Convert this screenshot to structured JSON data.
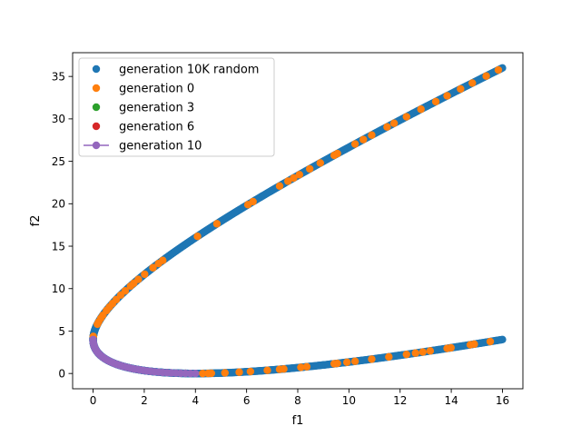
{
  "chart_data": {
    "type": "scatter",
    "title": "",
    "xlabel": "f1",
    "ylabel": "f2",
    "xlim": [
      -0.8,
      16.8
    ],
    "ylim": [
      -1.8,
      37.8
    ],
    "xticks": [
      0,
      2,
      4,
      6,
      8,
      10,
      12,
      14,
      16
    ],
    "yticks": [
      0,
      5,
      10,
      15,
      20,
      25,
      30,
      35
    ],
    "xtick_labels": [
      "0",
      "2",
      "4",
      "6",
      "8",
      "10",
      "12",
      "14",
      "16"
    ],
    "ytick_labels": [
      "0",
      "5",
      "10",
      "15",
      "20",
      "25",
      "30",
      "35"
    ],
    "grid": false,
    "legend_position": "top-left",
    "function": "f1 = x^2, f2 = (x - 2)^2, x in [-4, 4]",
    "series": [
      {
        "name": "generation 10K random",
        "color": "#1f77b4",
        "style": "markers",
        "x_param_range": [
          -4,
          4
        ],
        "x_param_samples": 10000
      },
      {
        "name": "generation 0",
        "color": "#ff7f0e",
        "style": "markers",
        "x_param": [
          -3.98,
          -3.92,
          -3.85,
          -3.79,
          -3.72,
          -3.66,
          -3.58,
          -3.5,
          -3.43,
          -3.39,
          -3.3,
          -3.25,
          -3.2,
          -3.09,
          -3.07,
          -2.98,
          -2.91,
          -2.84,
          -2.8,
          -2.76,
          -2.7,
          -2.5,
          -2.46,
          -2.2,
          -2.02,
          -1.65,
          -1.6,
          -1.53,
          -1.42,
          -1.33,
          -1.26,
          -1.21,
          -1.12,
          -1.04,
          -0.95,
          -0.87,
          -0.8,
          -0.73,
          -0.72,
          -0.62,
          -0.55,
          -0.47,
          -0.41,
          -0.09,
          2.07,
          2.12,
          2.15,
          2.27,
          2.39,
          2.48,
          2.61,
          2.7,
          2.73,
          2.85,
          2.89,
          3.07,
          3.09,
          3.15,
          3.2,
          3.3,
          3.4,
          3.5,
          3.55,
          3.59,
          3.63,
          3.72,
          3.74,
          3.84,
          3.86,
          3.94
        ]
      },
      {
        "name": "generation 3",
        "color": "#2ca02c",
        "style": "markers",
        "x_param": [
          0.1,
          0.5,
          1.0,
          1.5,
          1.9
        ]
      },
      {
        "name": "generation 6",
        "color": "#d62728",
        "style": "markers",
        "x_param": [
          0.1,
          0.5,
          1.0,
          1.5,
          1.9
        ]
      },
      {
        "name": "generation 10",
        "color": "#9467bd",
        "style": "line-markers",
        "x_param_range": [
          0,
          2
        ],
        "x_param_samples": 41
      }
    ]
  }
}
